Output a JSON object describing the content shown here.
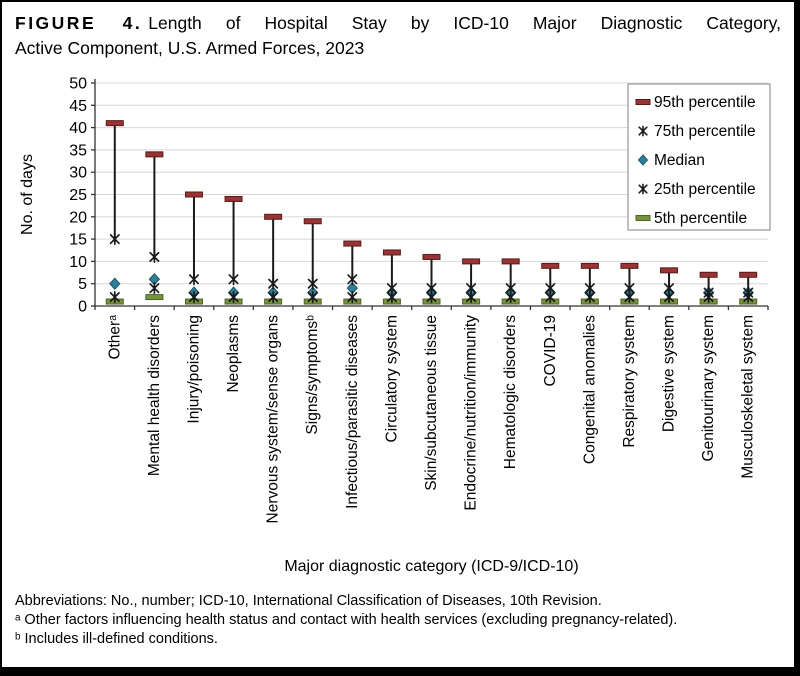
{
  "figure": {
    "label": "FIGURE 4.",
    "title_line1": "Length of Hospital Stay by ICD-10 Major Diagnostic Category,",
    "title_line2": "Active Component, U.S. Armed Forces, 2023"
  },
  "chart_data": {
    "type": "scatter",
    "subtype": "percentile-box",
    "title": "",
    "xlabel": "Major diagnostic category (ICD-9/ICD-10)",
    "ylabel": "No. of days",
    "ylim": [
      0,
      50
    ],
    "ytick_step": 5,
    "grid": true,
    "legend_position": "top-right",
    "categories": [
      "Otherᵃ",
      "Mental health disorders",
      "Injury/poisoning",
      "Neoplasms",
      "Nervous system/sense organs",
      "Signs/symptomsᵇ",
      "Infectious/parasitic diseases",
      "Circulatory system",
      "Skin/subcutaneous tissue",
      "Endocrine/nutrition/immunity",
      "Hematologic disorders",
      "COVID-19",
      "Congenital anomalies",
      "Respiratory system",
      "Digestive system",
      "Genitourinary system",
      "Musculoskeletal system"
    ],
    "series": [
      {
        "name": "95th percentile",
        "marker": "dash",
        "color": "#9A3334",
        "stroke": "#561C1B",
        "values": [
          41,
          34,
          25,
          24,
          20,
          19,
          14,
          12,
          11,
          10,
          10,
          9,
          9,
          9,
          8,
          7,
          7
        ]
      },
      {
        "name": "75th percentile",
        "marker": "x",
        "color": "#1a1a1a",
        "stroke": "#1a1a1a",
        "values": [
          15,
          11,
          6,
          6,
          5,
          5,
          6,
          4,
          4,
          4,
          4,
          4,
          4,
          4,
          4,
          3,
          3
        ]
      },
      {
        "name": "Median",
        "marker": "diamond",
        "color": "#2E7F96",
        "stroke": "#1D5666",
        "values": [
          5,
          6,
          3,
          3,
          3,
          3,
          4,
          3,
          3,
          3,
          3,
          3,
          3,
          3,
          3,
          3,
          3
        ]
      },
      {
        "name": "25th percentile",
        "marker": "x",
        "color": "#1a1a1a",
        "stroke": "#1a1a1a",
        "values": [
          2,
          4,
          2,
          2,
          2,
          2,
          2,
          2,
          2,
          2,
          2,
          2,
          2,
          2,
          2,
          2,
          2
        ]
      },
      {
        "name": "5th percentile",
        "marker": "dash",
        "color": "#77933C",
        "stroke": "#4F6228",
        "values": [
          1,
          2,
          1,
          1,
          1,
          1,
          1,
          1,
          1,
          1,
          1,
          1,
          1,
          1,
          1,
          1,
          1
        ]
      }
    ],
    "colors": {
      "gridline": "#D8D8D8",
      "axis": "#333333",
      "range_line": "#1a1a1a",
      "legend_border": "#A6A6A6"
    }
  },
  "footnotes": {
    "abbreviations": "Abbreviations: No., number; ICD-10, International Classification of Diseases, 10th Revision.",
    "note_a": "ᵃ Other factors influencing health status and contact with health services (excluding pregnancy-related).",
    "note_b": "ᵇ Includes ill-defined conditions."
  }
}
